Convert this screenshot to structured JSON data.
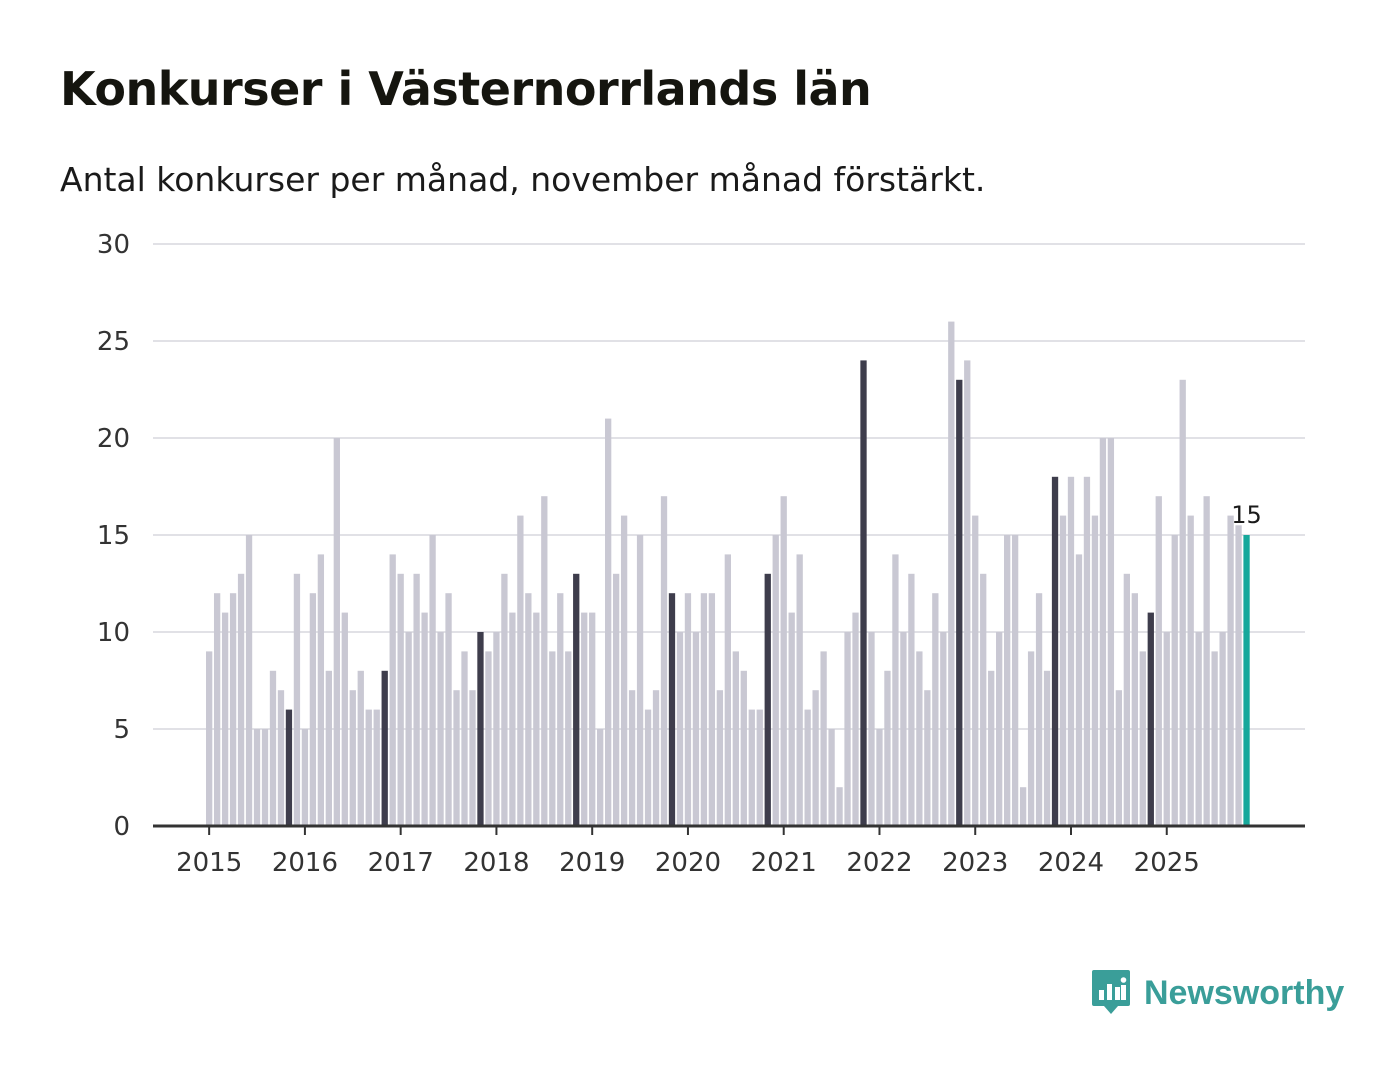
{
  "title": "Konkurser i Västernorrlands län",
  "subtitle": "Antal konkurser per månad, november månad förstärkt.",
  "brand": {
    "name": "Newsworthy",
    "icon": "newsworthy-logo-icon",
    "color": "#3a9e99"
  },
  "colors": {
    "bar": "#c9c8d3",
    "highlight": "#3e3d4c",
    "latest": "#16a89b",
    "grid": "#e1e1e6",
    "axis": "#333333"
  },
  "chart_data": {
    "type": "bar",
    "title": "Konkurser i Västernorrlands län",
    "subtitle": "Antal konkurser per månad, november månad förstärkt.",
    "xlabel": "",
    "ylabel": "",
    "ylim": [
      0,
      30
    ],
    "y_ticks": [
      0,
      5,
      10,
      15,
      20,
      25,
      30
    ],
    "x_tick_labels": [
      "2015",
      "2016",
      "2017",
      "2018",
      "2019",
      "2020",
      "2021",
      "2022",
      "2023",
      "2024",
      "2025"
    ],
    "start": "2015-01",
    "frequency": "monthly",
    "highlight_month": "november",
    "grid": true,
    "values": [
      9,
      12,
      11,
      12,
      13,
      15,
      5,
      5,
      8,
      7,
      6,
      13,
      5,
      12,
      14,
      8,
      20,
      11,
      7,
      8,
      6,
      6,
      8,
      14,
      13,
      10,
      13,
      11,
      15,
      10,
      12,
      7,
      9,
      7,
      10,
      9,
      10,
      13,
      11,
      16,
      12,
      11,
      17,
      9,
      12,
      9,
      13,
      11,
      11,
      5,
      21,
      13,
      16,
      7,
      15,
      6,
      7,
      17,
      12,
      10,
      12,
      10,
      12,
      12,
      7,
      14,
      9,
      8,
      6,
      6,
      13,
      15,
      17,
      11,
      14,
      6,
      7,
      9,
      5,
      2,
      10,
      11,
      24,
      10,
      5,
      8,
      14,
      10,
      13,
      9,
      7,
      12,
      10,
      26,
      23,
      24,
      16,
      13,
      8,
      10,
      15,
      15,
      2,
      9,
      12,
      8,
      18,
      16,
      18,
      14,
      18,
      16,
      20,
      20,
      7,
      13,
      12,
      9,
      11,
      17,
      10,
      15,
      23,
      16,
      10,
      17,
      9,
      10,
      16,
      15.5,
      15
    ],
    "latest_value_label": "15"
  }
}
